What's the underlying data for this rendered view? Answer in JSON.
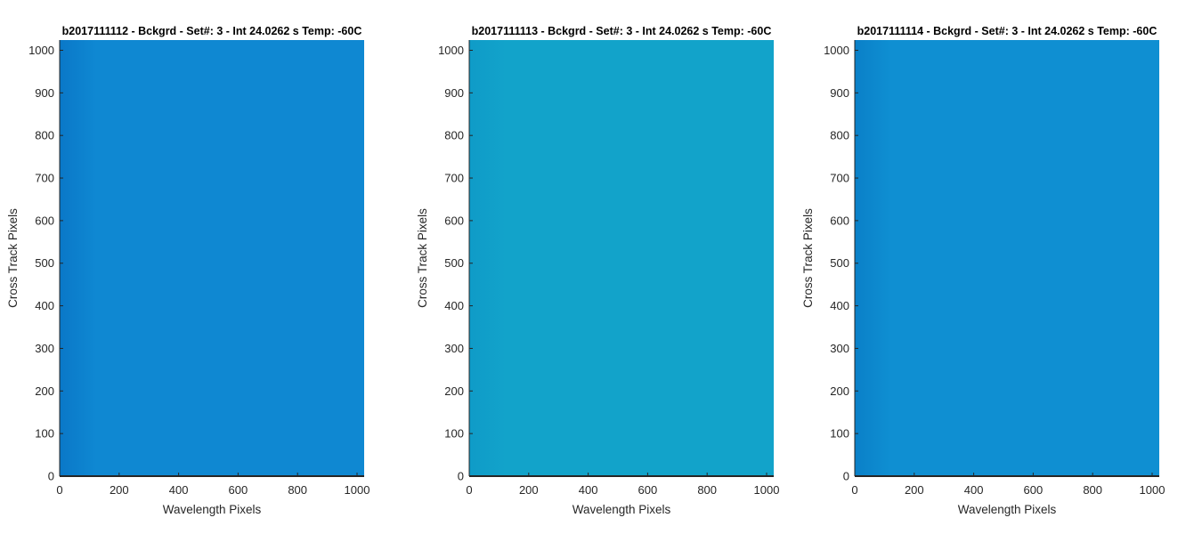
{
  "chart_data": [
    {
      "type": "heatmap",
      "title": "b2017111112 - Bckgrd - Set#: 3 - Int 24.0262 s Temp: -60C",
      "xlabel": "Wavelength Pixels",
      "ylabel": "Cross Track Pixels",
      "xlim": [
        0,
        1024
      ],
      "ylim": [
        0,
        1024
      ],
      "xticks": [
        0,
        200,
        400,
        600,
        800,
        1000
      ],
      "yticks": [
        0,
        100,
        200,
        300,
        400,
        500,
        600,
        700,
        800,
        900,
        1000
      ],
      "grid": false,
      "fill_color": "#0f88d2",
      "edge_color": "#0a78c8"
    },
    {
      "type": "heatmap",
      "title": "b2017111113 - Bckgrd - Set#: 3 - Int 24.0262 s Temp: -60C",
      "xlabel": "Wavelength Pixels",
      "ylabel": "Cross Track Pixels",
      "xlim": [
        0,
        1024
      ],
      "ylim": [
        0,
        1024
      ],
      "xticks": [
        0,
        200,
        400,
        600,
        800,
        1000
      ],
      "yticks": [
        0,
        100,
        200,
        300,
        400,
        500,
        600,
        700,
        800,
        900,
        1000
      ],
      "grid": false,
      "fill_color": "#12a3ca",
      "edge_color": "#0f9bc8"
    },
    {
      "type": "heatmap",
      "title": "b2017111114 - Bckgrd - Set#: 3 - Int 24.0262 s Temp: -60C",
      "xlabel": "Wavelength Pixels",
      "ylabel": "Cross Track Pixels",
      "xlim": [
        0,
        1024
      ],
      "ylim": [
        0,
        1024
      ],
      "xticks": [
        0,
        200,
        400,
        600,
        800,
        1000
      ],
      "yticks": [
        0,
        100,
        200,
        300,
        400,
        500,
        600,
        700,
        800,
        900,
        1000
      ],
      "grid": false,
      "fill_color": "#0f8fd2",
      "edge_color": "#0a80c8"
    }
  ]
}
